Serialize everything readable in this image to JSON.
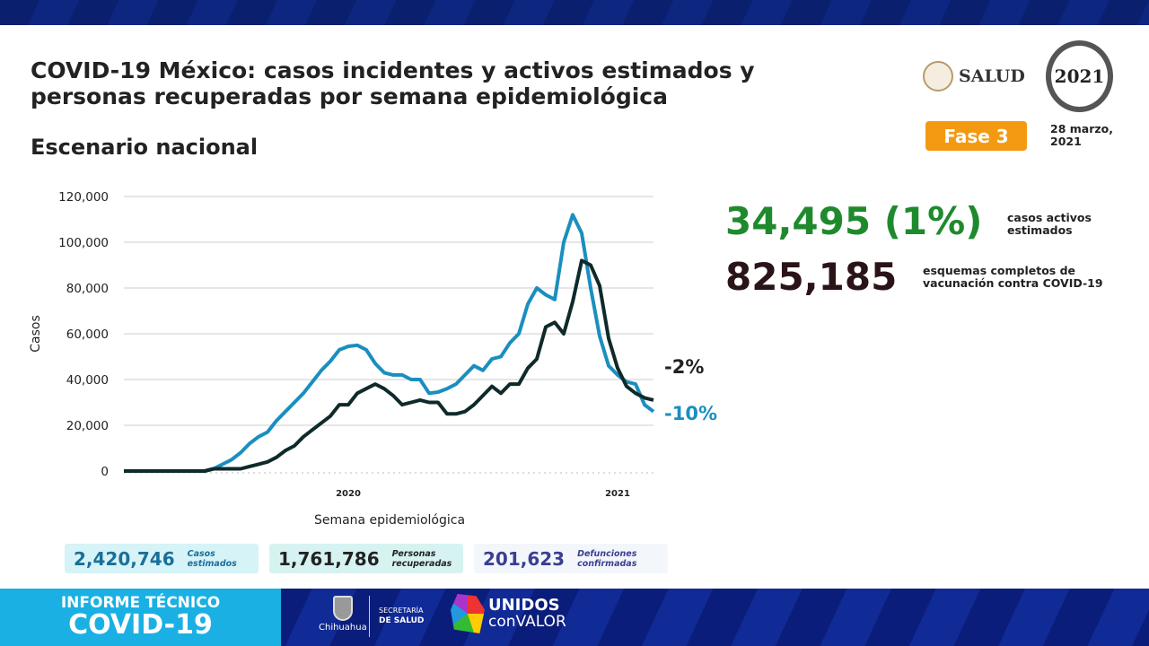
{
  "header": {
    "title": "COVID-19 México: casos incidentes y activos estimados y personas recuperadas por semana epidemiológica",
    "subtitle": "Escenario nacional",
    "salud_logo": "SALUD",
    "emblem_text": "2021",
    "phase_badge": "Fase 3",
    "date": "28 marzo, 2021",
    "colors": {
      "phase": "#f39a12",
      "navy": "#0b1d7a",
      "cyan": "#1ab0e3"
    }
  },
  "highlights": [
    {
      "value": "34,495 (1%)",
      "label": "casos activos estimados",
      "color": "#1f8a2d"
    },
    {
      "value": "825,185",
      "label": "esquemas completos de vacunación contra COVID-19",
      "color": "#2a1418"
    }
  ],
  "chart_data": {
    "type": "line",
    "xlabel": "Semana epidemiológica",
    "ylabel": "Casos",
    "ylim": [
      0,
      120000
    ],
    "yticks": [
      "0",
      "20,000",
      "40,000",
      "60,000",
      "80,000",
      "100,000",
      "120,000"
    ],
    "ytick_values": [
      0,
      20000,
      40000,
      60000,
      80000,
      100000,
      120000
    ],
    "xtick_labels": [
      {
        "label": "2020",
        "index": 25
      },
      {
        "label": "2021",
        "index": 55
      }
    ],
    "grid": true,
    "series": [
      {
        "color": "#1a8fbf",
        "end_label": "-10%",
        "values": [
          0,
          0,
          0,
          0,
          0,
          0,
          0,
          0,
          0,
          0,
          1000,
          3000,
          5000,
          8000,
          12000,
          15000,
          17000,
          22000,
          26000,
          30000,
          34000,
          39000,
          44000,
          48000,
          53000,
          54500,
          55000,
          53000,
          47000,
          43000,
          42000,
          42000,
          40000,
          40000,
          34000,
          34500,
          36000,
          38000,
          42000,
          46000,
          44000,
          49000,
          50000,
          56000,
          60000,
          73000,
          80000,
          77000,
          75000,
          100000,
          112000,
          104000,
          80000,
          59000,
          46000,
          42000,
          39000,
          38000,
          29000,
          26000
        ]
      },
      {
        "color": "#0f2a2a",
        "end_label": "-2%",
        "values": [
          0,
          0,
          0,
          0,
          0,
          0,
          0,
          0,
          0,
          0,
          1000,
          1000,
          1000,
          1000,
          2000,
          3000,
          4000,
          6000,
          9000,
          11000,
          15000,
          18000,
          21000,
          24000,
          29000,
          29000,
          34000,
          36000,
          38000,
          36000,
          33000,
          29000,
          30000,
          31000,
          30000,
          30000,
          25000,
          25000,
          26000,
          29000,
          33000,
          37000,
          34000,
          38000,
          38000,
          45000,
          49000,
          63000,
          65000,
          60000,
          74000,
          92000,
          90000,
          81000,
          58000,
          45000,
          37000,
          34000,
          32000,
          31000
        ]
      }
    ]
  },
  "stats": [
    {
      "value": "2,420,746",
      "label": "Casos estimados",
      "color": "#1a6f9a",
      "bg": "#d6f3f7"
    },
    {
      "value": "1,761,786",
      "label": "Personas recuperadas",
      "color": "#222",
      "bg": "#d6f3f2"
    },
    {
      "value": "201,623",
      "label": "Defunciones confirmadas",
      "color": "#3b3f8f",
      "bg": "#f3f6fb"
    }
  ],
  "footer": {
    "informe_line1": "INFORME TÉCNICO",
    "informe_line2": "COVID-19",
    "chihuahua": "Chihuahua",
    "secretaria_line1": "SECRETARÍA",
    "secretaria_line2": "DE SALUD",
    "unidos_line1": "UNIDOS",
    "unidos_line2": "conVALOR"
  }
}
